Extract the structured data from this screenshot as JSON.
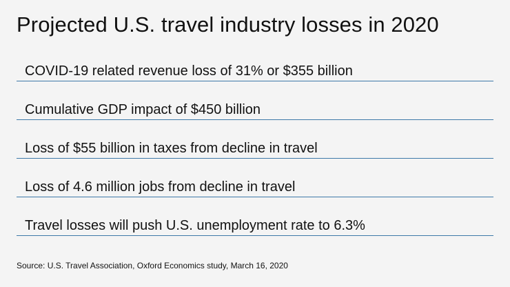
{
  "title": "Projected U.S. travel industry losses in 2020",
  "items": [
    "COVID-19 related revenue loss of 31% or $355 billion",
    "Cumulative GDP impact of $450 billion",
    "Loss of $55 billion in taxes from decline in travel",
    "Loss of 4.6 million jobs from decline in travel",
    "Travel losses will push U.S. unemployment rate to 6.3%"
  ],
  "source": "Source: U.S. Travel Association, Oxford Economics study, March 16, 2020",
  "colors": {
    "background": "#f4f4f4",
    "rule": "#3d78a8",
    "text": "#111111"
  }
}
